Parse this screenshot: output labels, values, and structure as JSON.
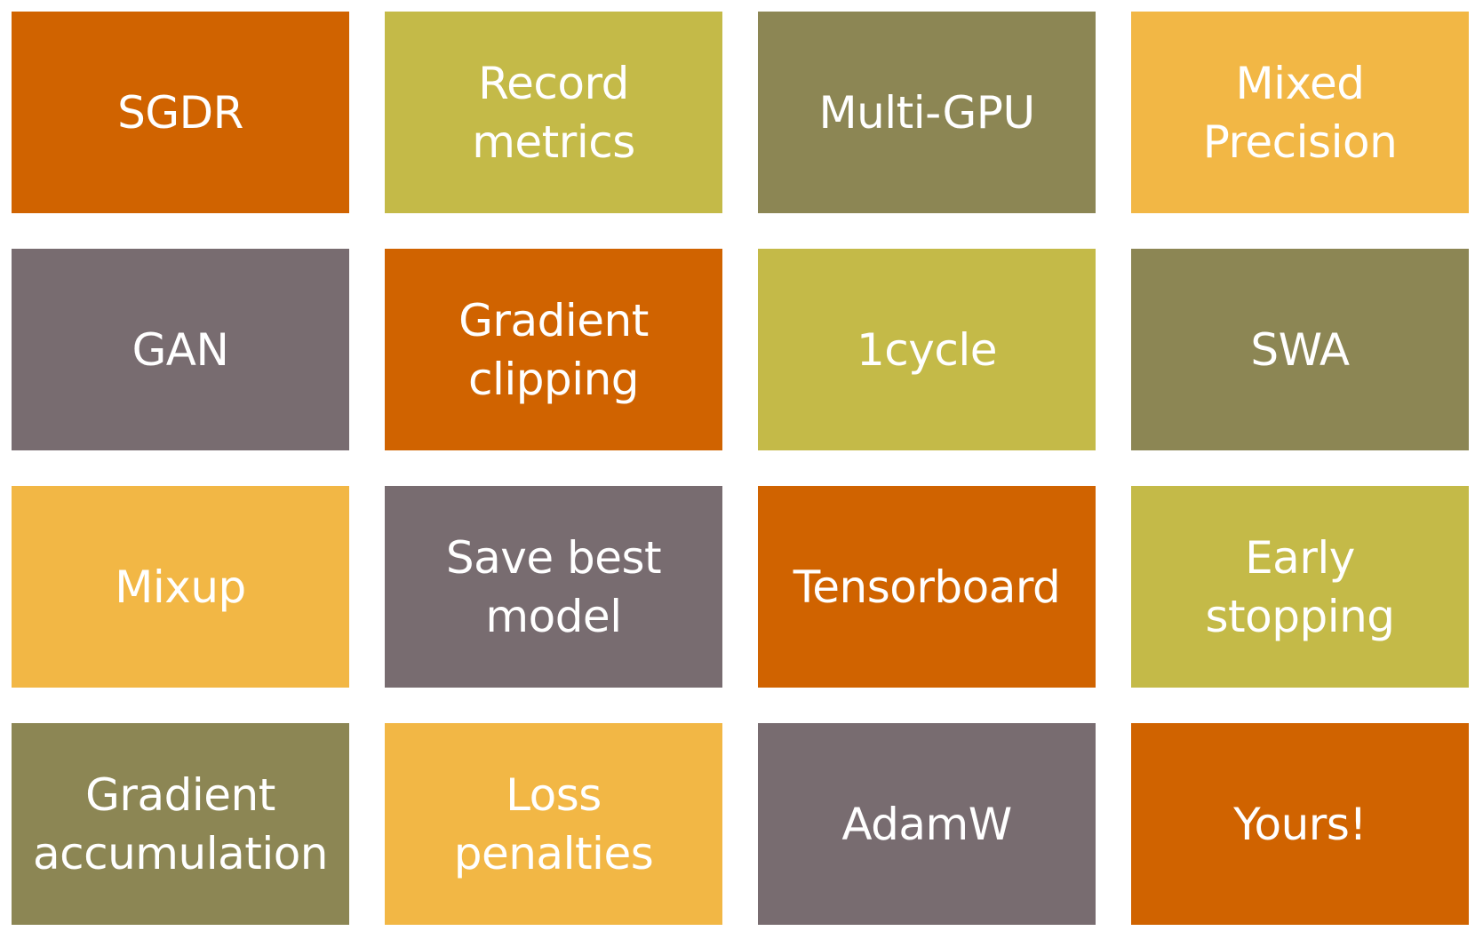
{
  "colors": {
    "orange": "#D06300",
    "lime": "#C4BA48",
    "olive": "#8C8654",
    "amber": "#F2B745",
    "mauve": "#786C70"
  },
  "tiles": [
    {
      "label": "SGDR",
      "color": "orange"
    },
    {
      "label": "Record\nmetrics",
      "color": "lime"
    },
    {
      "label": "Multi-GPU",
      "color": "olive"
    },
    {
      "label": "Mixed\nPrecision",
      "color": "amber"
    },
    {
      "label": "GAN",
      "color": "mauve"
    },
    {
      "label": "Gradient\nclipping",
      "color": "orange"
    },
    {
      "label": "1cycle",
      "color": "lime"
    },
    {
      "label": "SWA",
      "color": "olive"
    },
    {
      "label": "Mixup",
      "color": "amber"
    },
    {
      "label": "Save best\nmodel",
      "color": "mauve"
    },
    {
      "label": "Tensorboard",
      "color": "orange"
    },
    {
      "label": "Early\nstopping",
      "color": "lime"
    },
    {
      "label": "Gradient\naccumulation",
      "color": "olive"
    },
    {
      "label": "Loss\npenalties",
      "color": "amber"
    },
    {
      "label": "AdamW",
      "color": "mauve"
    },
    {
      "label": "Yours!",
      "color": "orange"
    }
  ]
}
